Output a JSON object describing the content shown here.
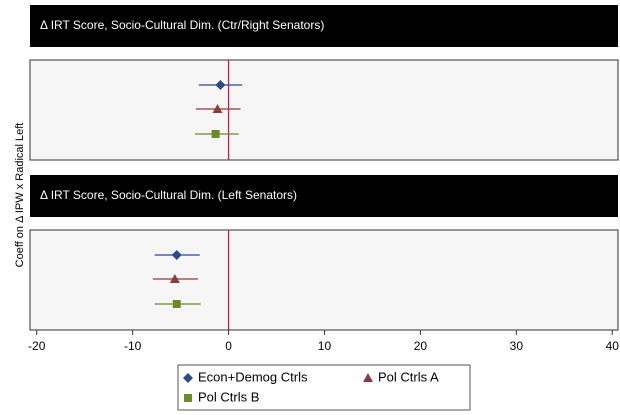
{
  "chart_data": {
    "type": "coefplot",
    "ylabel": "Coeff on Δ IPW x Radical Left",
    "panels": [
      "Δ IRT Score, Socio-Cultural Dim. (Ctr/Right Senators)",
      "Δ IRT Score, Socio-Cultural Dim. (Left Senators)"
    ],
    "series": [
      {
        "name": "Econ+Demog Ctrls",
        "color": "#2e4a86",
        "marker": "diamond",
        "values": [
          -0.85,
          -5.4
        ],
        "lower": [
          -3.1,
          -7.7
        ],
        "upper": [
          1.45,
          -3.0
        ]
      },
      {
        "name": "Pol Ctrls A",
        "color": "#8e3a3c",
        "marker": "triangle",
        "values": [
          -1.15,
          -5.6
        ],
        "lower": [
          -3.4,
          -7.9
        ],
        "upper": [
          1.25,
          -3.2
        ]
      },
      {
        "name": "Pol Ctrls B",
        "color": "#6a8a2c",
        "marker": "square",
        "values": [
          -1.35,
          -5.4
        ],
        "lower": [
          -3.5,
          -7.7
        ],
        "upper": [
          1.05,
          -2.9
        ]
      }
    ],
    "refline": 0,
    "refline_color": "#c2185b",
    "xlim": [
      -20.7,
      40.6
    ],
    "xticks": [
      -20,
      -10,
      0,
      10,
      20,
      30,
      40
    ],
    "legend": "bottom"
  }
}
